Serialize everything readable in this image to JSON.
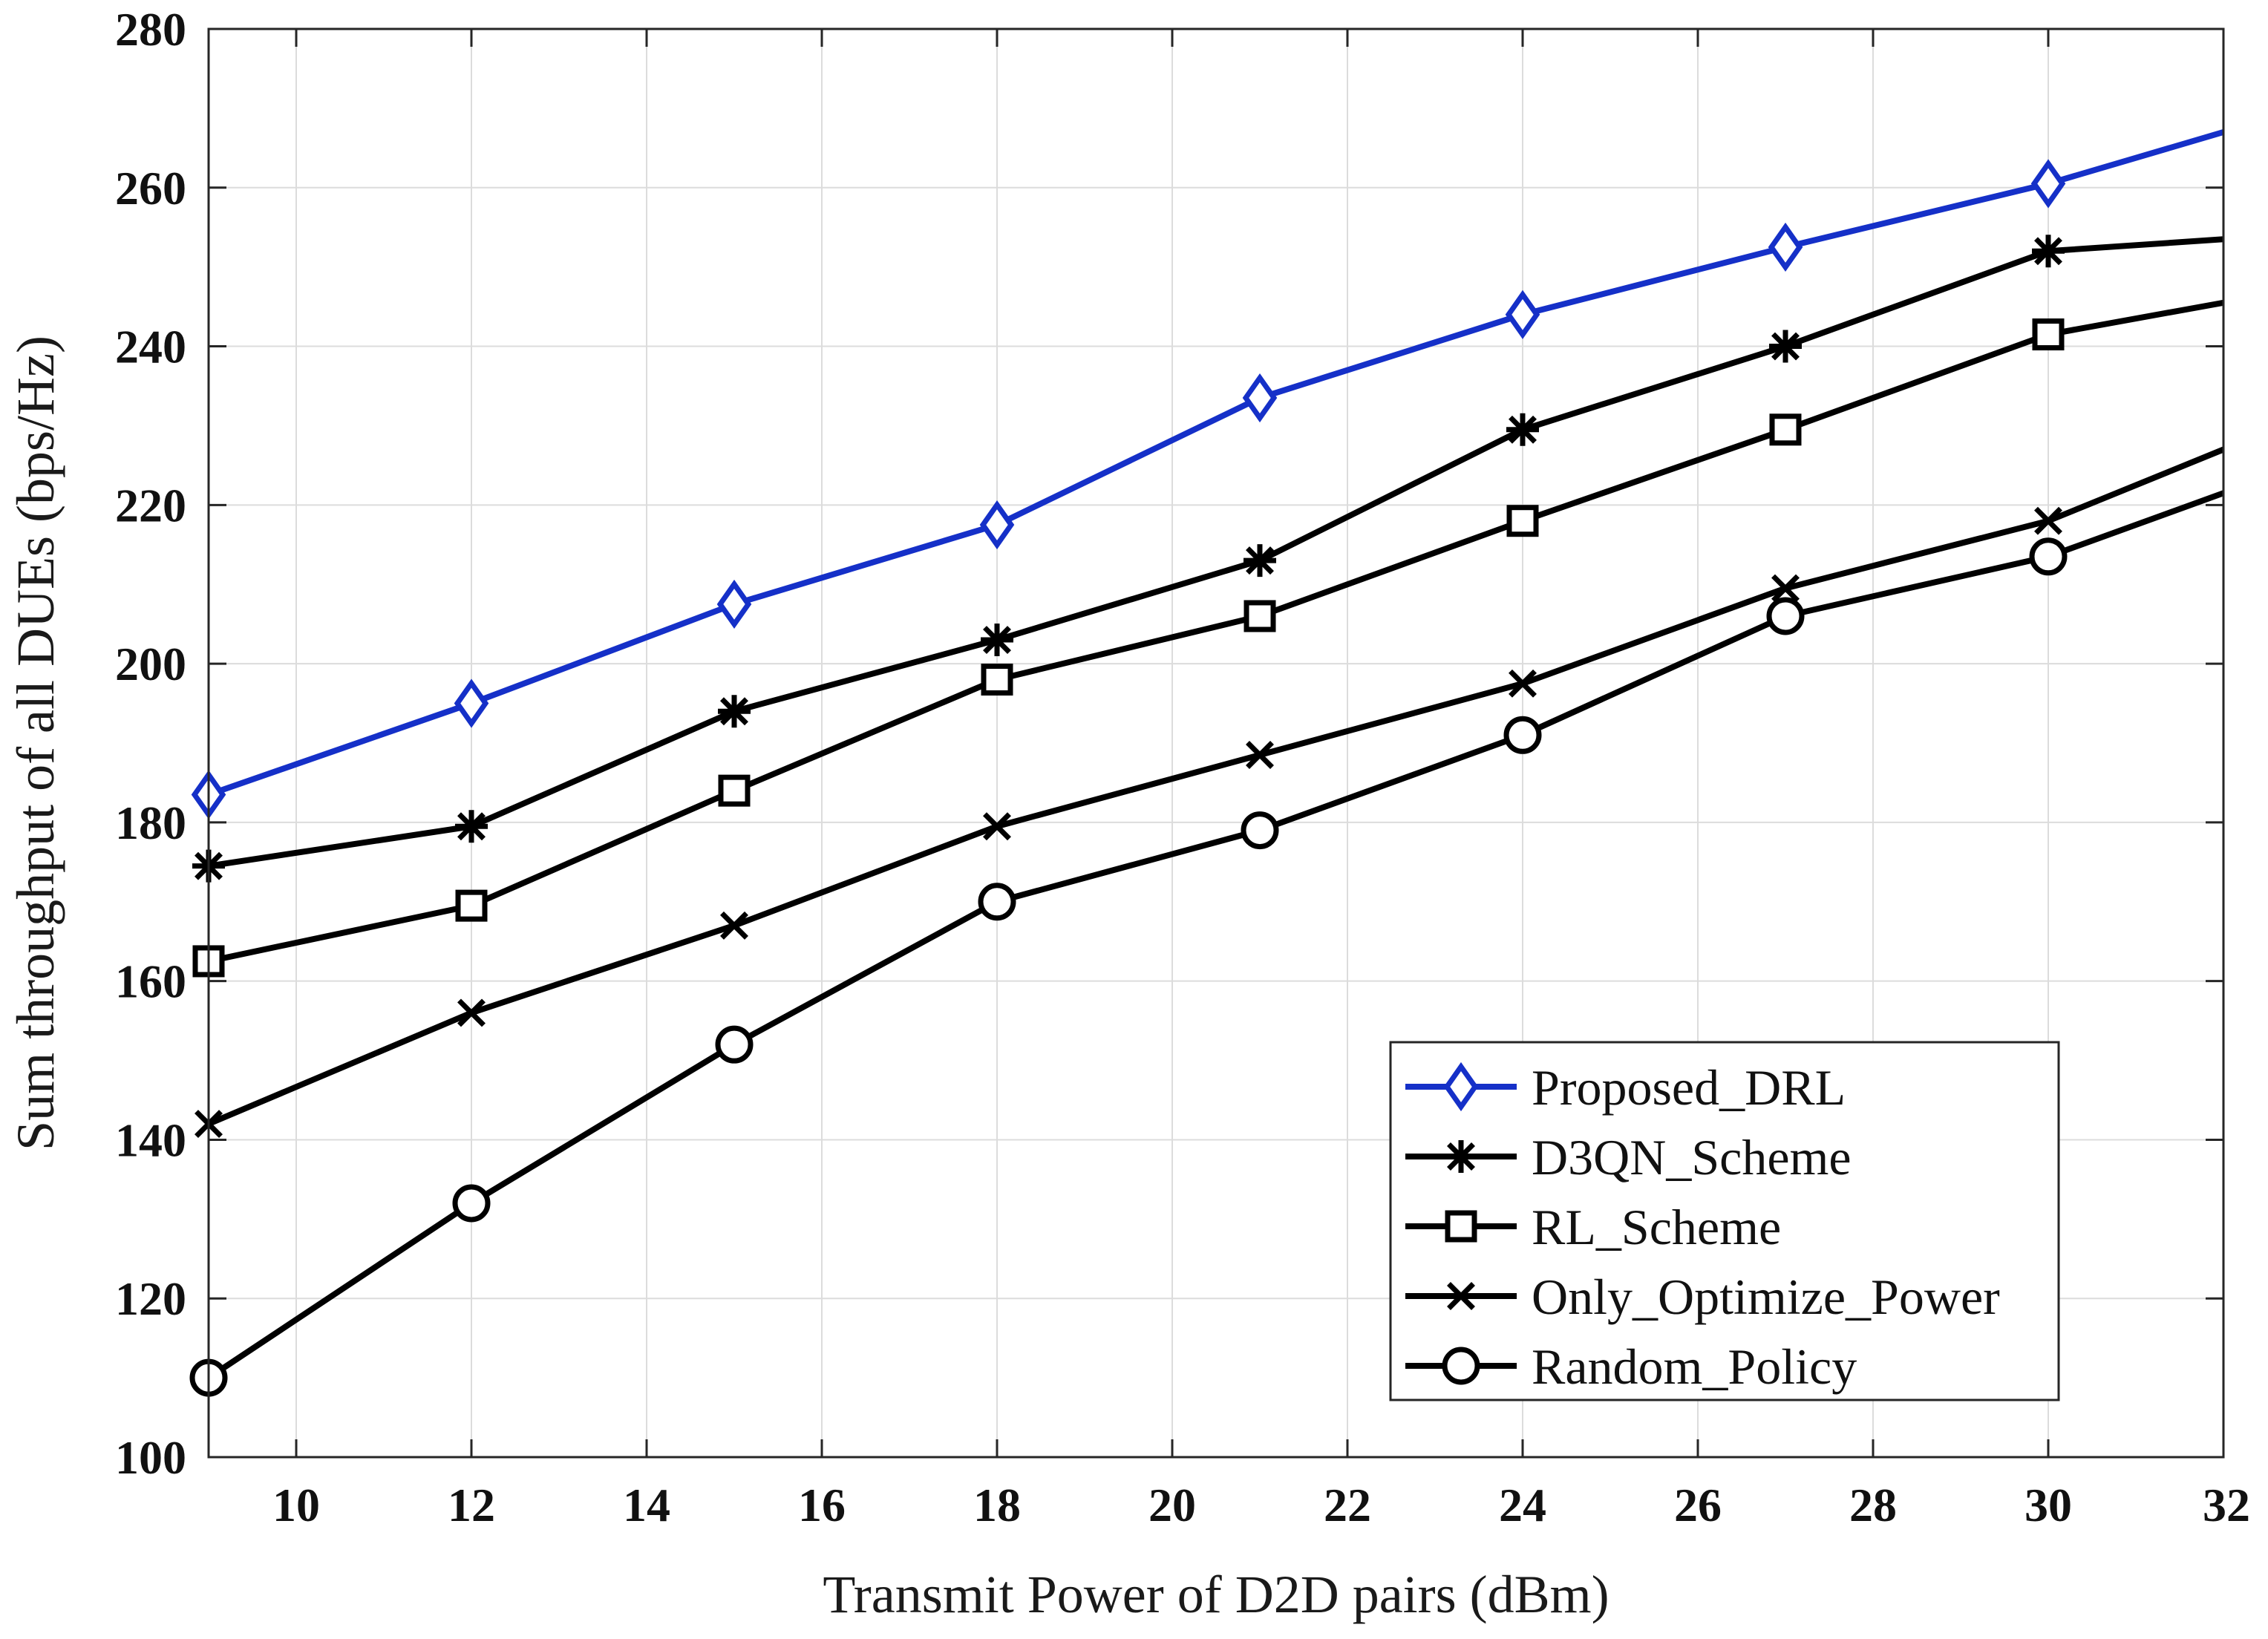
{
  "chart_data": {
    "type": "line",
    "title": "",
    "xlabel": "Transmit Power of D2D pairs (dBm)",
    "ylabel": "Sum throughput of all DUEs (bps/Hz)",
    "xlim": [
      9,
      32
    ],
    "ylim": [
      100,
      280
    ],
    "xticks": [
      10,
      12,
      14,
      16,
      18,
      20,
      22,
      24,
      26,
      28,
      30,
      32
    ],
    "yticks": [
      100,
      120,
      140,
      160,
      180,
      200,
      220,
      240,
      260,
      280
    ],
    "grid": true,
    "legend_position": "bottom-right",
    "x": [
      9,
      12,
      15,
      18,
      21,
      24,
      27,
      30,
      32
    ],
    "series": [
      {
        "name": "Proposed_DRL",
        "marker": "diamond",
        "color": "#1530c8",
        "values": [
          183.5,
          195,
          207.5,
          217.5,
          233.5,
          244,
          252.5,
          260.5,
          267
        ]
      },
      {
        "name": "D3QN_Scheme",
        "marker": "asterisk",
        "color": "#000000",
        "values": [
          174.5,
          179.5,
          194,
          203,
          213,
          229.5,
          240,
          252,
          253.5
        ]
      },
      {
        "name": "RL_Scheme",
        "marker": "square",
        "color": "#000000",
        "values": [
          162.5,
          169.5,
          184,
          198,
          206,
          218,
          229.5,
          241.5,
          245.5
        ]
      },
      {
        "name": "Only_Optimize_Power",
        "marker": "cross",
        "color": "#000000",
        "values": [
          142,
          156,
          167,
          179.5,
          188.5,
          197.5,
          209.5,
          218,
          227
        ]
      },
      {
        "name": "Random_Policy",
        "marker": "circle",
        "color": "#000000",
        "values": [
          110,
          132,
          152,
          170,
          179,
          191,
          206,
          213.5,
          221.5
        ]
      }
    ]
  }
}
